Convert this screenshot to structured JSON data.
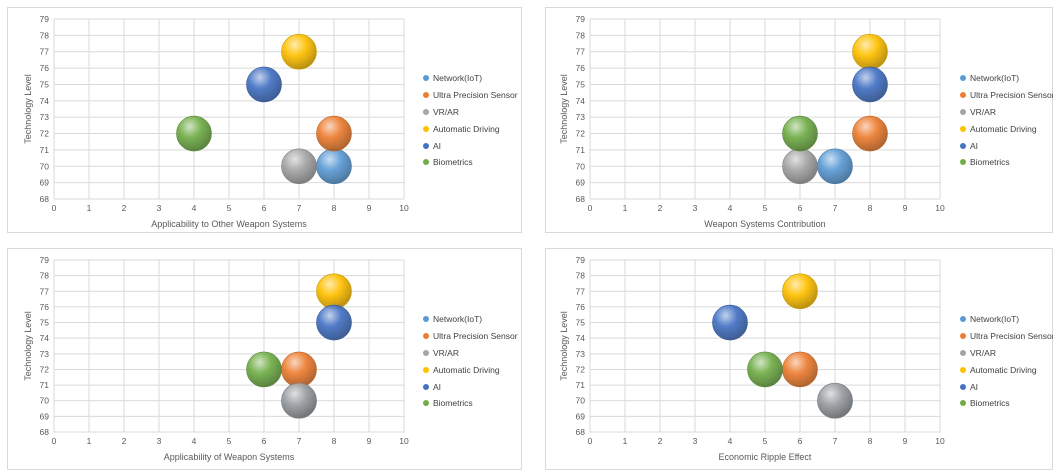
{
  "chart_data": [
    {
      "type": "bubble",
      "xlabel": "Applicability to Other Weapon Systems",
      "ylabel": "Technology Level",
      "xlim": [
        0,
        10
      ],
      "ylim": [
        68,
        79
      ],
      "x_ticks": [
        "0",
        "1",
        "2",
        "3",
        "4",
        "5",
        "6",
        "7",
        "8",
        "9",
        "10"
      ],
      "y_ticks": [
        "68",
        "69",
        "70",
        "71",
        "72",
        "73",
        "74",
        "75",
        "76",
        "77",
        "78",
        "79"
      ],
      "grid": true,
      "legend_position": "right",
      "series": [
        {
          "name": "Network(IoT)",
          "color": "#5b9bd5",
          "x": 8,
          "y": 70
        },
        {
          "name": "Ultra Precision Sensor",
          "color": "#ed7d31",
          "x": 8,
          "y": 72
        },
        {
          "name": "VR/AR",
          "color": "#a5a5a5",
          "x": 7,
          "y": 70
        },
        {
          "name": "Automatic Driving",
          "color": "#ffc000",
          "x": 7,
          "y": 77
        },
        {
          "name": "AI",
          "color": "#4472c4",
          "x": 6,
          "y": 75
        },
        {
          "name": "Biometrics",
          "color": "#70ad47",
          "x": 4,
          "y": 72
        }
      ]
    },
    {
      "type": "bubble",
      "xlabel": "Weapon Systems Contribution",
      "ylabel": "Technology Level",
      "xlim": [
        0,
        10
      ],
      "ylim": [
        68,
        79
      ],
      "x_ticks": [
        "0",
        "1",
        "2",
        "3",
        "4",
        "5",
        "6",
        "7",
        "8",
        "9",
        "10"
      ],
      "y_ticks": [
        "68",
        "69",
        "70",
        "71",
        "72",
        "73",
        "74",
        "75",
        "76",
        "77",
        "78",
        "79"
      ],
      "grid": true,
      "legend_position": "right",
      "series": [
        {
          "name": "Network(IoT)",
          "color": "#5b9bd5",
          "x": 7,
          "y": 70
        },
        {
          "name": "Ultra Precision Sensor",
          "color": "#ed7d31",
          "x": 8,
          "y": 72
        },
        {
          "name": "VR/AR",
          "color": "#a5a5a5",
          "x": 6,
          "y": 70
        },
        {
          "name": "Automatic Driving",
          "color": "#ffc000",
          "x": 8,
          "y": 77
        },
        {
          "name": "AI",
          "color": "#4472c4",
          "x": 8,
          "y": 75
        },
        {
          "name": "Biometrics",
          "color": "#70ad47",
          "x": 6,
          "y": 72
        }
      ]
    },
    {
      "type": "bubble",
      "xlabel": "Applicability of Weapon Systems",
      "ylabel": "Technology Level",
      "xlim": [
        0,
        10
      ],
      "ylim": [
        68,
        79
      ],
      "x_ticks": [
        "0",
        "1",
        "2",
        "3",
        "4",
        "5",
        "6",
        "7",
        "8",
        "9",
        "10"
      ],
      "y_ticks": [
        "68",
        "69",
        "70",
        "71",
        "72",
        "73",
        "74",
        "75",
        "76",
        "77",
        "78",
        "79"
      ],
      "grid": true,
      "legend_position": "right",
      "series": [
        {
          "name": "Network(IoT)",
          "color": "#5b9bd5",
          "x": 7,
          "y": 70
        },
        {
          "name": "Ultra Precision Sensor",
          "color": "#ed7d31",
          "x": 7,
          "y": 72
        },
        {
          "name": "VR/AR",
          "color": "#a5a5a5",
          "x": 7,
          "y": 70
        },
        {
          "name": "Automatic Driving",
          "color": "#ffc000",
          "x": 8,
          "y": 77
        },
        {
          "name": "AI",
          "color": "#4472c4",
          "x": 8,
          "y": 75
        },
        {
          "name": "Biometrics",
          "color": "#70ad47",
          "x": 6,
          "y": 72
        }
      ]
    },
    {
      "type": "bubble",
      "xlabel": "Economic Ripple Effect",
      "ylabel": "Technology Level",
      "xlim": [
        0,
        10
      ],
      "ylim": [
        68,
        79
      ],
      "x_ticks": [
        "0",
        "1",
        "2",
        "3",
        "4",
        "5",
        "6",
        "7",
        "8",
        "9",
        "10"
      ],
      "y_ticks": [
        "68",
        "69",
        "70",
        "71",
        "72",
        "73",
        "74",
        "75",
        "76",
        "77",
        "78",
        "79"
      ],
      "grid": true,
      "legend_position": "right",
      "series": [
        {
          "name": "Network(IoT)",
          "color": "#5b9bd5",
          "x": 7,
          "y": 70
        },
        {
          "name": "Ultra Precision Sensor",
          "color": "#ed7d31",
          "x": 6,
          "y": 72
        },
        {
          "name": "VR/AR",
          "color": "#a5a5a5",
          "x": 7,
          "y": 70
        },
        {
          "name": "Automatic Driving",
          "color": "#ffc000",
          "x": 6,
          "y": 77
        },
        {
          "name": "AI",
          "color": "#4472c4",
          "x": 4,
          "y": 75
        },
        {
          "name": "Biometrics",
          "color": "#70ad47",
          "x": 5,
          "y": 72
        }
      ]
    }
  ]
}
